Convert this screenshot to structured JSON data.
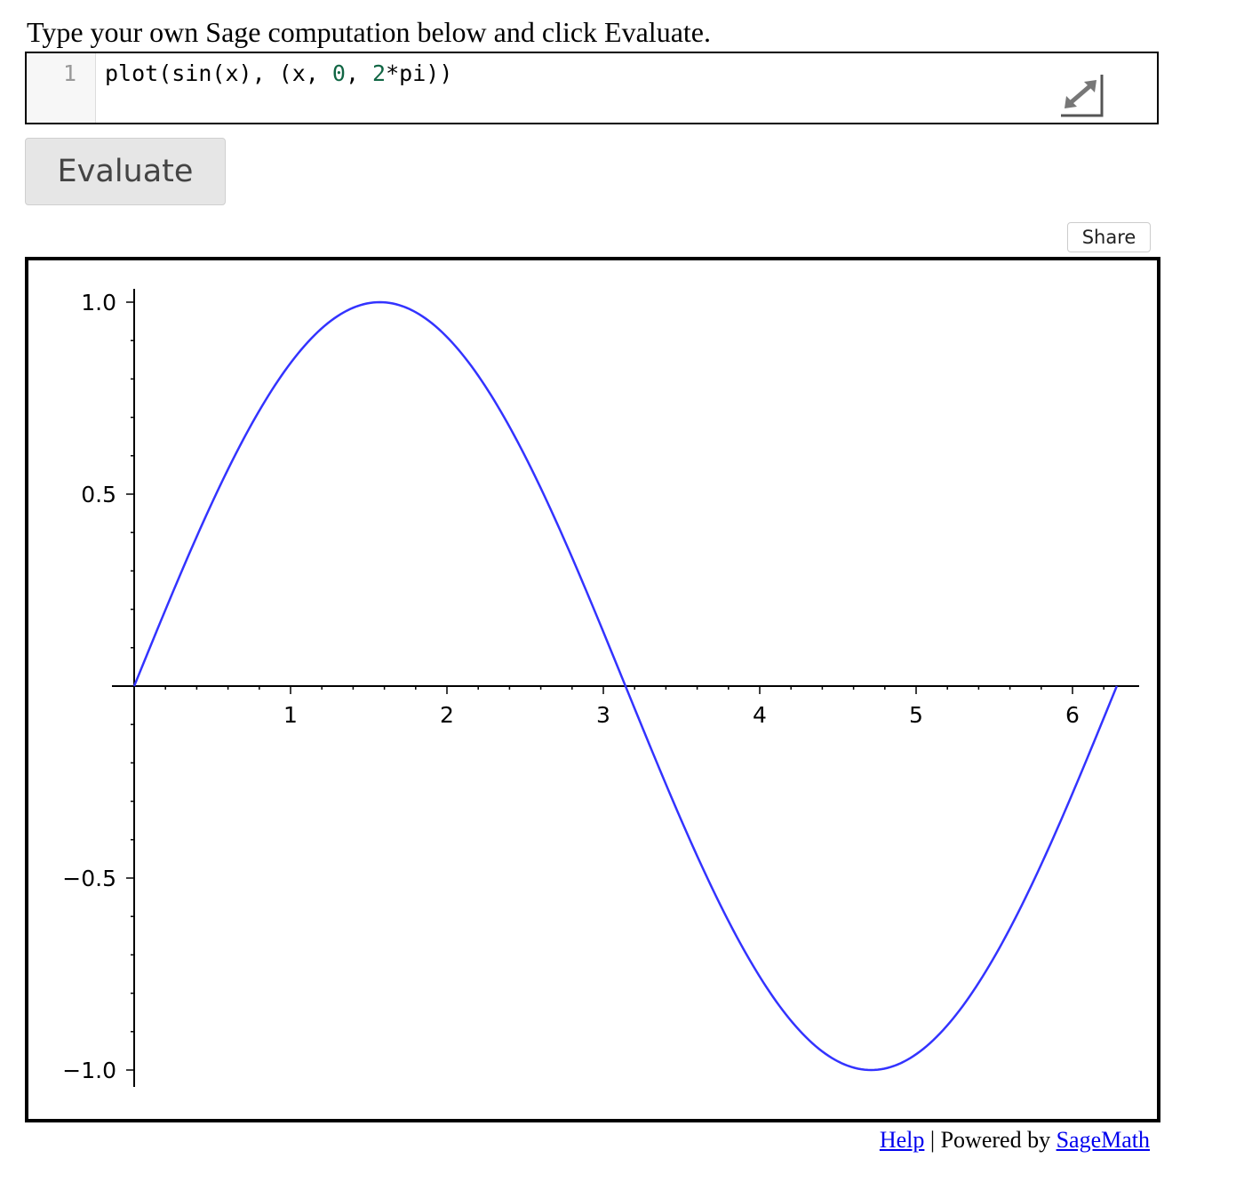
{
  "intro_text": "Type your own Sage computation below and click Evaluate.",
  "editor": {
    "line_number": "1",
    "code": {
      "t1": "plot(sin(x), (x, ",
      "t2": "0",
      "t3": ", ",
      "t4": "2",
      "t5": "*",
      "t6": "pi))"
    }
  },
  "evaluate_label": "Evaluate",
  "share_label": "Share",
  "footer": {
    "help": "Help",
    "separator": " | Powered by ",
    "sagemath": "SageMath"
  },
  "colors": {
    "curve": "#3333ff",
    "axis": "#000000",
    "tick_label": "#000000"
  },
  "chart_data": {
    "type": "line",
    "title": "",
    "xlabel": "",
    "ylabel": "",
    "function": "sin(x)",
    "xlim": [
      0,
      6.2832
    ],
    "ylim": [
      -1.0,
      1.0
    ],
    "x_ticks": [
      {
        "value": 1,
        "label": "1"
      },
      {
        "value": 2,
        "label": "2"
      },
      {
        "value": 3,
        "label": "3"
      },
      {
        "value": 4,
        "label": "4"
      },
      {
        "value": 5,
        "label": "5"
      },
      {
        "value": 6,
        "label": "6"
      }
    ],
    "y_ticks": [
      {
        "value": 1.0,
        "label": "1.0"
      },
      {
        "value": 0.5,
        "label": "0.5"
      },
      {
        "value": -0.5,
        "label": "−0.5"
      },
      {
        "value": -1.0,
        "label": "−1.0"
      }
    ],
    "series": [
      {
        "x": [
          0,
          0.2,
          0.4,
          0.6,
          0.8,
          1.0,
          1.2,
          1.4,
          1.5708,
          1.8,
          2.0,
          2.2,
          2.4,
          2.6,
          2.8,
          3.0,
          3.1416,
          3.4,
          3.6,
          3.8,
          4.0,
          4.2,
          4.4,
          4.7124,
          5.0,
          5.2,
          5.4,
          5.6,
          5.8,
          6.0,
          6.2832
        ],
        "y": [
          0,
          0.199,
          0.389,
          0.565,
          0.717,
          0.841,
          0.932,
          0.985,
          1.0,
          0.974,
          0.909,
          0.808,
          0.675,
          0.516,
          0.335,
          0.141,
          0,
          -0.256,
          -0.443,
          -0.612,
          -0.757,
          -0.872,
          -0.952,
          -1.0,
          -0.959,
          -0.883,
          -0.773,
          -0.631,
          -0.465,
          -0.279,
          0
        ]
      }
    ],
    "grid": false,
    "legend": "none"
  }
}
